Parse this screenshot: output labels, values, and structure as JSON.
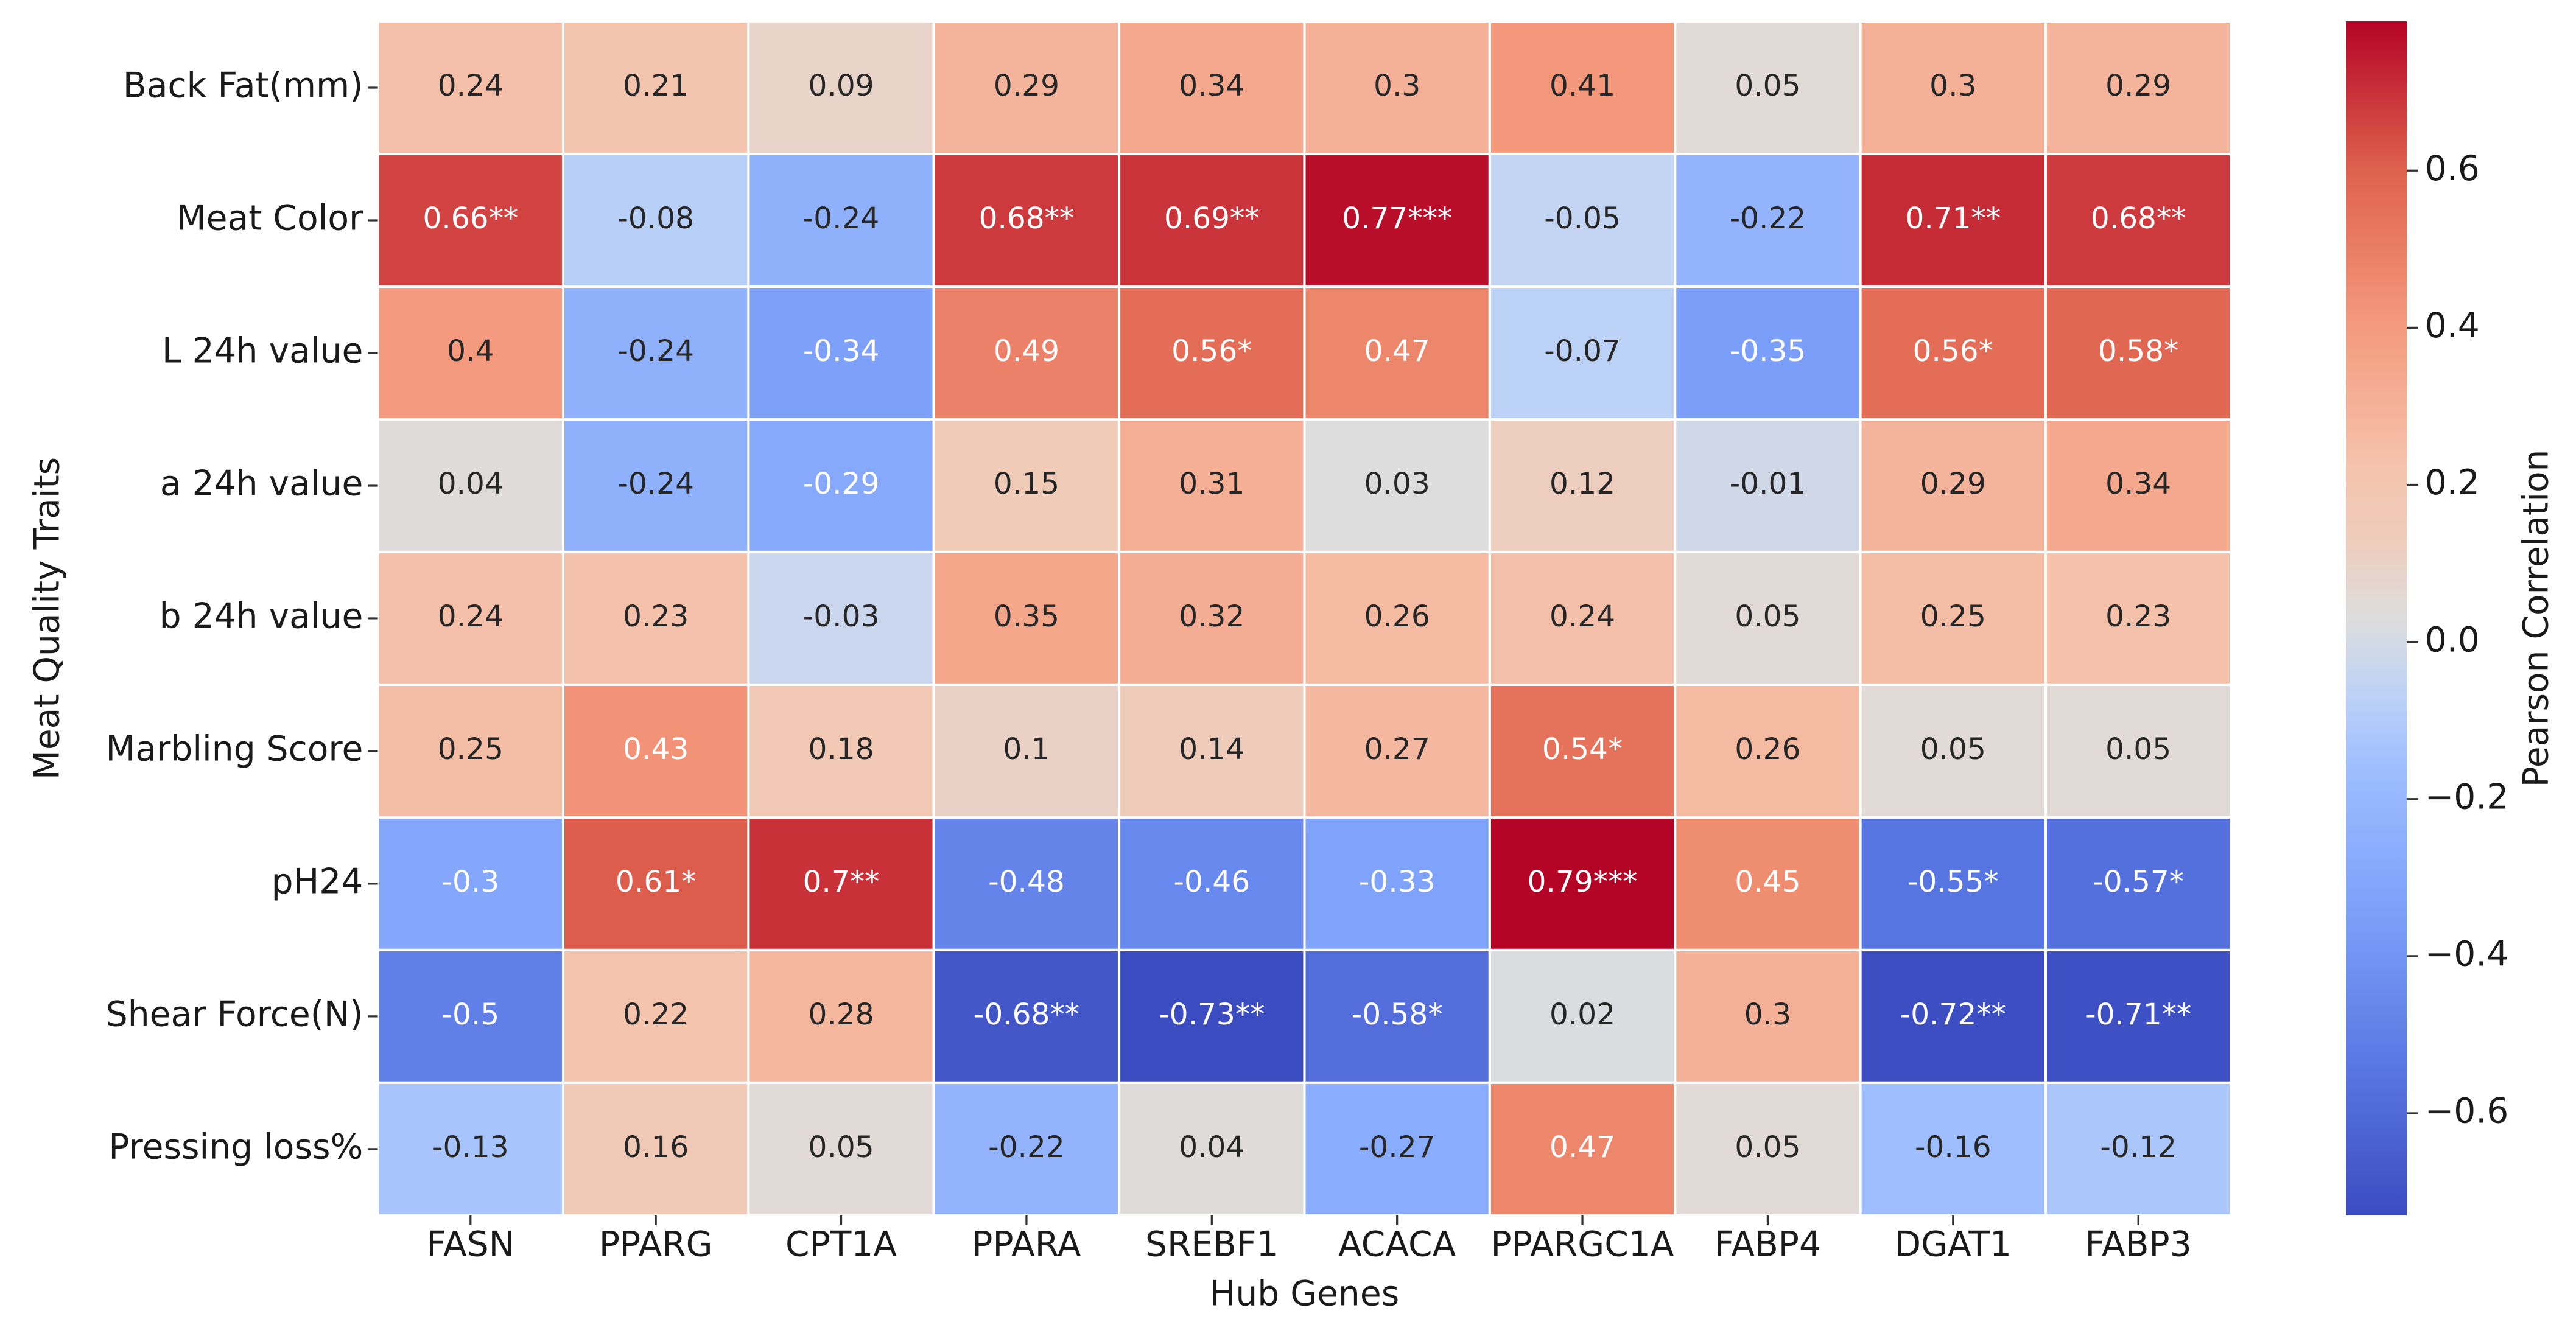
{
  "chart_data": {
    "type": "heatmap",
    "x_label": "Hub Genes",
    "y_label": "Meat Quality Traits",
    "colorbar_label": "Pearson Correlation",
    "colormap": "coolwarm",
    "x_categories": [
      "FASN",
      "PPARG",
      "CPT1A",
      "PPARA",
      "SREBF1",
      "ACACA",
      "PPARGC1A",
      "FABP4",
      "DGAT1",
      "FABP3"
    ],
    "y_categories": [
      "Back Fat(mm)",
      "Meat Color",
      "L 24h value",
      "a 24h value",
      "b 24h value",
      "Marbling Score",
      "pH24",
      "Shear Force(N)",
      "Pressing loss%"
    ],
    "values": [
      [
        0.24,
        0.21,
        0.09,
        0.29,
        0.34,
        0.3,
        0.41,
        0.05,
        0.3,
        0.29
      ],
      [
        0.66,
        -0.08,
        -0.24,
        0.68,
        0.69,
        0.77,
        -0.05,
        -0.22,
        0.71,
        0.68
      ],
      [
        0.4,
        -0.24,
        -0.34,
        0.49,
        0.56,
        0.47,
        -0.07,
        -0.35,
        0.56,
        0.58
      ],
      [
        0.04,
        -0.24,
        -0.29,
        0.15,
        0.31,
        0.03,
        0.12,
        -0.01,
        0.29,
        0.34
      ],
      [
        0.24,
        0.23,
        -0.03,
        0.35,
        0.32,
        0.26,
        0.24,
        0.05,
        0.25,
        0.23
      ],
      [
        0.25,
        0.43,
        0.18,
        0.1,
        0.14,
        0.27,
        0.54,
        0.26,
        0.05,
        0.05
      ],
      [
        -0.3,
        0.61,
        0.7,
        -0.48,
        -0.46,
        -0.33,
        0.79,
        0.45,
        -0.55,
        -0.57
      ],
      [
        -0.5,
        0.22,
        0.28,
        -0.68,
        -0.73,
        -0.58,
        0.02,
        0.3,
        -0.72,
        -0.71
      ],
      [
        -0.13,
        0.16,
        0.05,
        -0.22,
        0.04,
        -0.27,
        0.47,
        0.05,
        -0.16,
        -0.12
      ]
    ],
    "value_labels": [
      [
        "0.24",
        "0.21",
        "0.09",
        "0.29",
        "0.34",
        "0.3",
        "0.41",
        "0.05",
        "0.3",
        "0.29"
      ],
      [
        "0.66**",
        "-0.08",
        "-0.24",
        "0.68**",
        "0.69**",
        "0.77***",
        "-0.05",
        "-0.22",
        "0.71**",
        "0.68**"
      ],
      [
        "0.4",
        "-0.24",
        "-0.34",
        "0.49",
        "0.56*",
        "0.47",
        "-0.07",
        "-0.35",
        "0.56*",
        "0.58*"
      ],
      [
        "0.04",
        "-0.24",
        "-0.29",
        "0.15",
        "0.31",
        "0.03",
        "0.12",
        "-0.01",
        "0.29",
        "0.34"
      ],
      [
        "0.24",
        "0.23",
        "-0.03",
        "0.35",
        "0.32",
        "0.26",
        "0.24",
        "0.05",
        "0.25",
        "0.23"
      ],
      [
        "0.25",
        "0.43",
        "0.18",
        "0.1",
        "0.14",
        "0.27",
        "0.54*",
        "0.26",
        "0.05",
        "0.05"
      ],
      [
        "-0.3",
        "0.61*",
        "0.7**",
        "-0.48",
        "-0.46",
        "-0.33",
        "0.79***",
        "0.45",
        "-0.55*",
        "-0.57*"
      ],
      [
        "-0.5",
        "0.22",
        "0.28",
        "-0.68**",
        "-0.73**",
        "-0.58*",
        "0.02",
        "0.3",
        "-0.72**",
        "-0.71**"
      ],
      [
        "-0.13",
        "0.16",
        "0.05",
        "-0.22",
        "0.04",
        "-0.27",
        "0.47",
        "0.05",
        "-0.16",
        "-0.12"
      ]
    ],
    "zlim": [
      -0.73,
      0.79
    ],
    "zticks": [
      {
        "value": -0.6,
        "label": "−0.6"
      },
      {
        "value": -0.4,
        "label": "−0.4"
      },
      {
        "value": -0.2,
        "label": "−0.2"
      },
      {
        "value": 0,
        "label": "0.0"
      },
      0.2,
      0.4,
      0.6
    ]
  }
}
